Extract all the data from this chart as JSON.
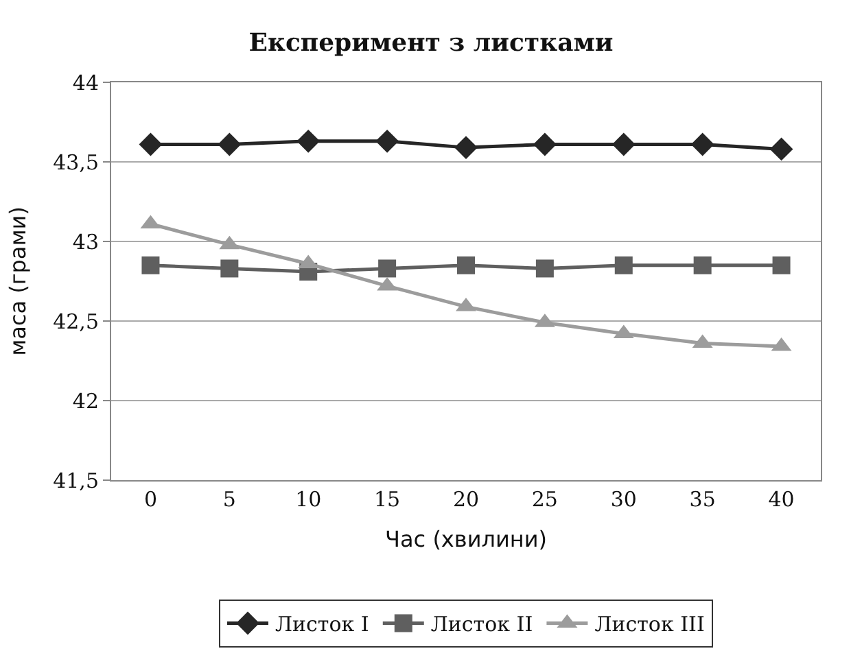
{
  "chart_data": {
    "type": "line",
    "title": "Експеримент з листками",
    "xlabel": "Час (хвилини)",
    "ylabel": "маса (грами)",
    "categories": [
      "0",
      "5",
      "10",
      "15",
      "20",
      "25",
      "30",
      "35",
      "40"
    ],
    "series": [
      {
        "name": "Листок I",
        "color": "#262626",
        "marker": "diamond",
        "values": [
          43.61,
          43.61,
          43.63,
          43.63,
          43.59,
          43.61,
          43.61,
          43.61,
          43.58
        ]
      },
      {
        "name": "Листок II",
        "color": "#5f5f5f",
        "marker": "square",
        "values": [
          42.85,
          42.83,
          42.81,
          42.83,
          42.85,
          42.83,
          42.85,
          42.85,
          42.85
        ]
      },
      {
        "name": "Листок III",
        "color": "#9c9c9c",
        "marker": "triangle",
        "values": [
          43.11,
          42.98,
          42.86,
          42.72,
          42.59,
          42.49,
          42.42,
          42.36,
          42.34
        ]
      }
    ],
    "ylim": [
      41.5,
      44
    ],
    "yticks": [
      {
        "value": 41.5,
        "label": "41,5"
      },
      {
        "value": 42,
        "label": "42"
      },
      {
        "value": 42.5,
        "label": "42,5"
      },
      {
        "value": 43,
        "label": "43"
      },
      {
        "value": 43.5,
        "label": "43,5"
      },
      {
        "value": 44,
        "label": "44"
      }
    ],
    "grid": "y",
    "legend": "bottom",
    "line_style": "solid"
  }
}
